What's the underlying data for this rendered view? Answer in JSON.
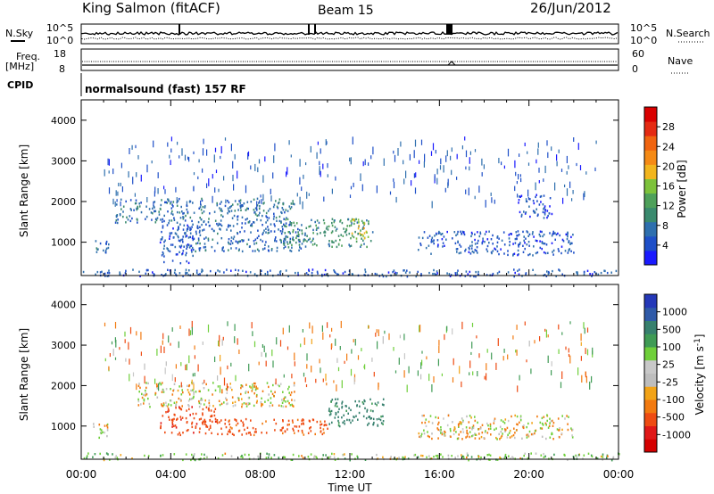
{
  "header": {
    "title": "King Salmon (fitACF)",
    "beam": "Beam 15",
    "date": "26/Jun/2012",
    "mode": "normalsound (fast) 157 RF"
  },
  "sky_panel": {
    "left_label": "N.Sky",
    "right_label": "N.Search",
    "tick_top": "10^5",
    "tick_bottom": "10^0"
  },
  "freq_panel": {
    "left_label_line1": "Freq.",
    "left_label_line2": "[MHz]",
    "left_ticks": [
      "18",
      "8"
    ],
    "right_ticks": [
      "60",
      "0"
    ],
    "right_label": "Nave",
    "cpid_label": "CPID"
  },
  "colors": {
    "power_scale": [
      "#1a1aff",
      "#1e4fc8",
      "#2e6fae",
      "#3a8a6e",
      "#4ea05a",
      "#7dc23b",
      "#f2b51d",
      "#f58a15",
      "#f06410",
      "#e42a12",
      "#d90000"
    ],
    "velocity_scale": [
      "#2438b8",
      "#2f5aa8",
      "#37806e",
      "#3f9b55",
      "#6fcf3a",
      "#c8c8c8",
      "#bdbdbd",
      "#f2a317",
      "#f27a10",
      "#ee4b12",
      "#e01818",
      "#d40000"
    ]
  },
  "chart_data": [
    {
      "type": "heatmap",
      "title": "",
      "xlabel": "",
      "ylabel": "Slant Range [km]",
      "x_ticks": [
        "00:00",
        "04:00",
        "08:00",
        "12:00",
        "16:00",
        "20:00",
        "00:00"
      ],
      "y_ticks": [
        "1000",
        "2000",
        "3000",
        "4000"
      ],
      "ylim": [
        180,
        4500
      ],
      "colorbar": {
        "label": "Power [dB]",
        "ticks": [
          "4",
          "8",
          "12",
          "16",
          "20",
          "24",
          "28"
        ],
        "range": [
          0,
          30
        ]
      },
      "echo_regions": [
        {
          "t_start": 0.5,
          "t_end": 1.2,
          "range_lo": 700,
          "range_hi": 1100,
          "value": 6
        },
        {
          "t_start": 1.5,
          "t_end": 9.5,
          "range_lo": 1500,
          "range_hi": 2100,
          "value": 7
        },
        {
          "t_start": 3.5,
          "t_end": 5.0,
          "range_lo": 500,
          "range_hi": 1500,
          "value": 5
        },
        {
          "t_start": 4.5,
          "t_end": 10.0,
          "range_lo": 800,
          "range_hi": 1500,
          "value": 6
        },
        {
          "t_start": 9.0,
          "t_end": 13.0,
          "range_lo": 900,
          "range_hi": 1600,
          "value": 10
        },
        {
          "t_start": 12.0,
          "t_end": 12.8,
          "range_lo": 1100,
          "range_hi": 1600,
          "value": 17
        },
        {
          "t_start": 15.0,
          "t_end": 22.0,
          "range_lo": 700,
          "range_hi": 1300,
          "value": 5
        },
        {
          "t_start": 19.5,
          "t_end": 21.0,
          "range_lo": 1600,
          "range_hi": 2200,
          "value": 4
        },
        {
          "t_start": 0.0,
          "t_end": 24.0,
          "range_lo": 180,
          "range_hi": 350,
          "value": 5
        }
      ]
    },
    {
      "type": "heatmap",
      "title": "",
      "xlabel": "Time UT",
      "ylabel": "Slant Range [km]",
      "x_ticks": [
        "00:00",
        "04:00",
        "08:00",
        "12:00",
        "16:00",
        "20:00",
        "00:00"
      ],
      "y_ticks": [
        "1000",
        "2000",
        "3000",
        "4000"
      ],
      "ylim": [
        180,
        4500
      ],
      "colorbar": {
        "label": "Velocity [m s^-1]",
        "ticks": [
          "1000",
          "500",
          "100",
          "25",
          "-25",
          "-100",
          "-500",
          "-1000"
        ],
        "range": [
          -1250,
          1250
        ]
      },
      "echo_regions": [
        {
          "t_start": 0.5,
          "t_end": 1.2,
          "range_lo": 700,
          "range_hi": 1100,
          "value": 0
        },
        {
          "t_start": 2.5,
          "t_end": 9.5,
          "range_lo": 1500,
          "range_hi": 2100,
          "value": 0
        },
        {
          "t_start": 3.5,
          "t_end": 6.0,
          "range_lo": 800,
          "range_hi": 1500,
          "value": -200
        },
        {
          "t_start": 6.0,
          "t_end": 11.0,
          "range_lo": 800,
          "range_hi": 1200,
          "value": -150
        },
        {
          "t_start": 11.0,
          "t_end": 13.5,
          "range_lo": 1000,
          "range_hi": 1700,
          "value": 300
        },
        {
          "t_start": 15.0,
          "t_end": 22.0,
          "range_lo": 700,
          "range_hi": 1300,
          "value": 0
        },
        {
          "t_start": 0.0,
          "t_end": 24.0,
          "range_lo": 180,
          "range_hi": 350,
          "value": 50
        }
      ]
    }
  ]
}
